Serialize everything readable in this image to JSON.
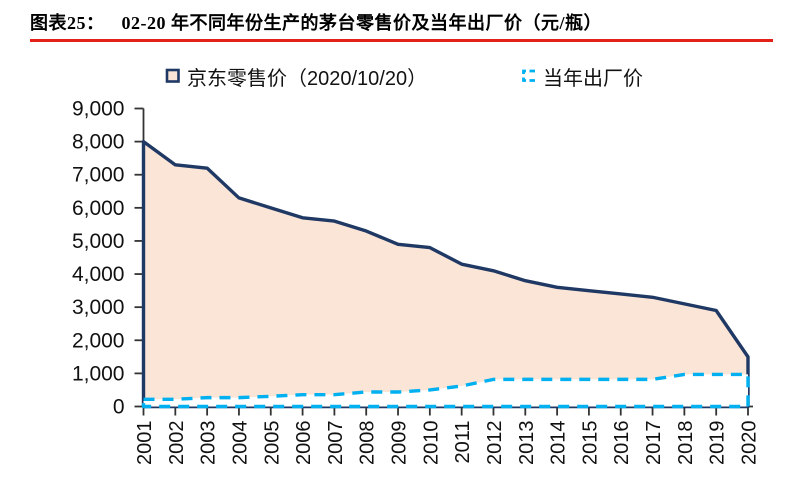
{
  "header": {
    "label": "图表25：",
    "title": "02-20 年不同年份生产的茅台零售价及当年出厂价（元/瓶）",
    "underline_color": "#E32119"
  },
  "legend": {
    "items": [
      {
        "label": "京东零售价（2020/10/20）",
        "marker": "outlined-square",
        "line_color": "#1F3864",
        "fill_color": "#FBE5D6"
      },
      {
        "label": "当年出厂价",
        "marker": "dashed-bracket",
        "line_color": "#00B0F0",
        "fill_color": "#FFFFFF"
      }
    ]
  },
  "chart_data": {
    "type": "area",
    "title": "02-20 年不同年份生产的茅台零售价及当年出厂价（元/瓶）",
    "x": [
      2001,
      2002,
      2003,
      2004,
      2005,
      2006,
      2007,
      2008,
      2009,
      2010,
      2011,
      2012,
      2013,
      2014,
      2015,
      2016,
      2017,
      2018,
      2019,
      2020
    ],
    "series": [
      {
        "name": "京东零售价（2020/10/20）",
        "values": [
          7999,
          7299,
          7199,
          6299,
          5999,
          5699,
          5599,
          5299,
          4899,
          4799,
          4299,
          4099,
          3799,
          3599,
          3499,
          3399,
          3299,
          3099,
          2899,
          1499
        ],
        "style": "solid",
        "line_color": "#1F3864",
        "fill_color": "#FBE5D6"
      },
      {
        "name": "当年出厂价",
        "values": [
          218,
          218,
          268,
          268,
          308,
          358,
          358,
          438,
          438,
          499,
          619,
          819,
          819,
          819,
          819,
          819,
          819,
          969,
          969,
          969
        ],
        "style": "dashed",
        "line_color": "#00B0F0",
        "fill_color": "#FFFFFF"
      }
    ],
    "ylim": [
      0,
      9000
    ],
    "ytick_interval": 1000,
    "yticklabels": [
      "0",
      "1,000",
      "2,000",
      "3,000",
      "4,000",
      "5,000",
      "6,000",
      "7,000",
      "8,000",
      "9,000"
    ],
    "xlabel": "",
    "ylabel": "",
    "grid": false,
    "legend_position": "top",
    "axis_color": "#333333",
    "tick_label_color": "#111111"
  }
}
